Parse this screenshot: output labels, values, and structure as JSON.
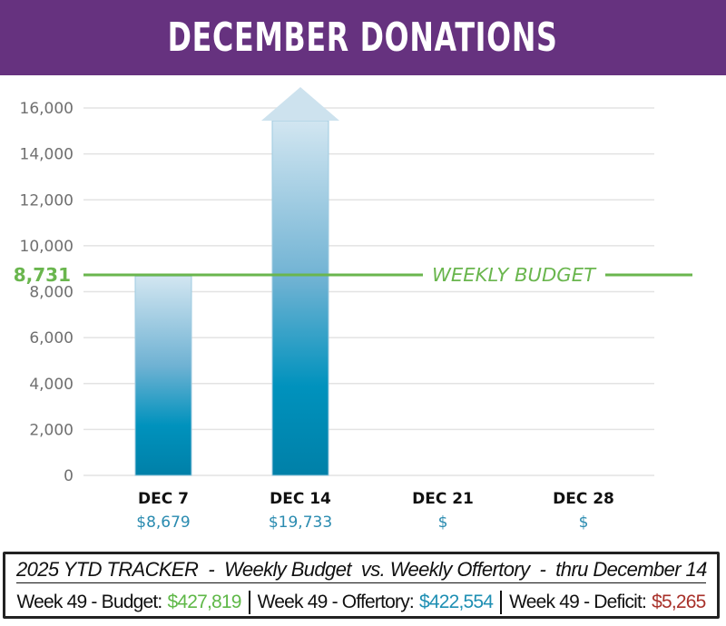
{
  "header": {
    "title": "DECEMBER DONATIONS"
  },
  "colors": {
    "header_bg": "#66327f",
    "budget_green": "#6ab64e",
    "bar_top": "#cfe3ef",
    "bar_bottom": "#0083ab",
    "value_blue": "#2a8bb0",
    "deficit_red": "#a8312a"
  },
  "chart_data": {
    "type": "bar",
    "title": "DECEMBER DONATIONS",
    "xlabel": "",
    "ylabel": "",
    "ylim": [
      0,
      16000
    ],
    "yticks": [
      0,
      2000,
      4000,
      6000,
      8000,
      10000,
      12000,
      14000,
      16000
    ],
    "ytick_labels": [
      "0",
      "2,000",
      "4,000",
      "6,000",
      "8,000",
      "10,000",
      "12,000",
      "14,000",
      "16,000"
    ],
    "grid": true,
    "categories": [
      "DEC 7",
      "DEC 14",
      "DEC 21",
      "DEC 28"
    ],
    "values": [
      8679,
      19733,
      null,
      null
    ],
    "value_labels": [
      "$8,679",
      "$19,733",
      "$",
      "$"
    ],
    "overflow": [
      false,
      true,
      false,
      false
    ],
    "reference_line": {
      "value": 8731,
      "label": "8,731",
      "text": "WEEKLY BUDGET"
    }
  },
  "tracker": {
    "title_parts": [
      "2025 YTD TRACKER",
      "  -  ",
      "Weekly Budget  vs. Weekly Offertory",
      "  -  ",
      "thru December 14"
    ],
    "stats": [
      {
        "label": "Week 49 - Budget:",
        "value": "$427,819"
      },
      {
        "label": "Week 49 - Offertory:",
        "value": "$422,554"
      },
      {
        "label": "Week 49 - Deficit:",
        "value": "$5,265"
      }
    ]
  }
}
